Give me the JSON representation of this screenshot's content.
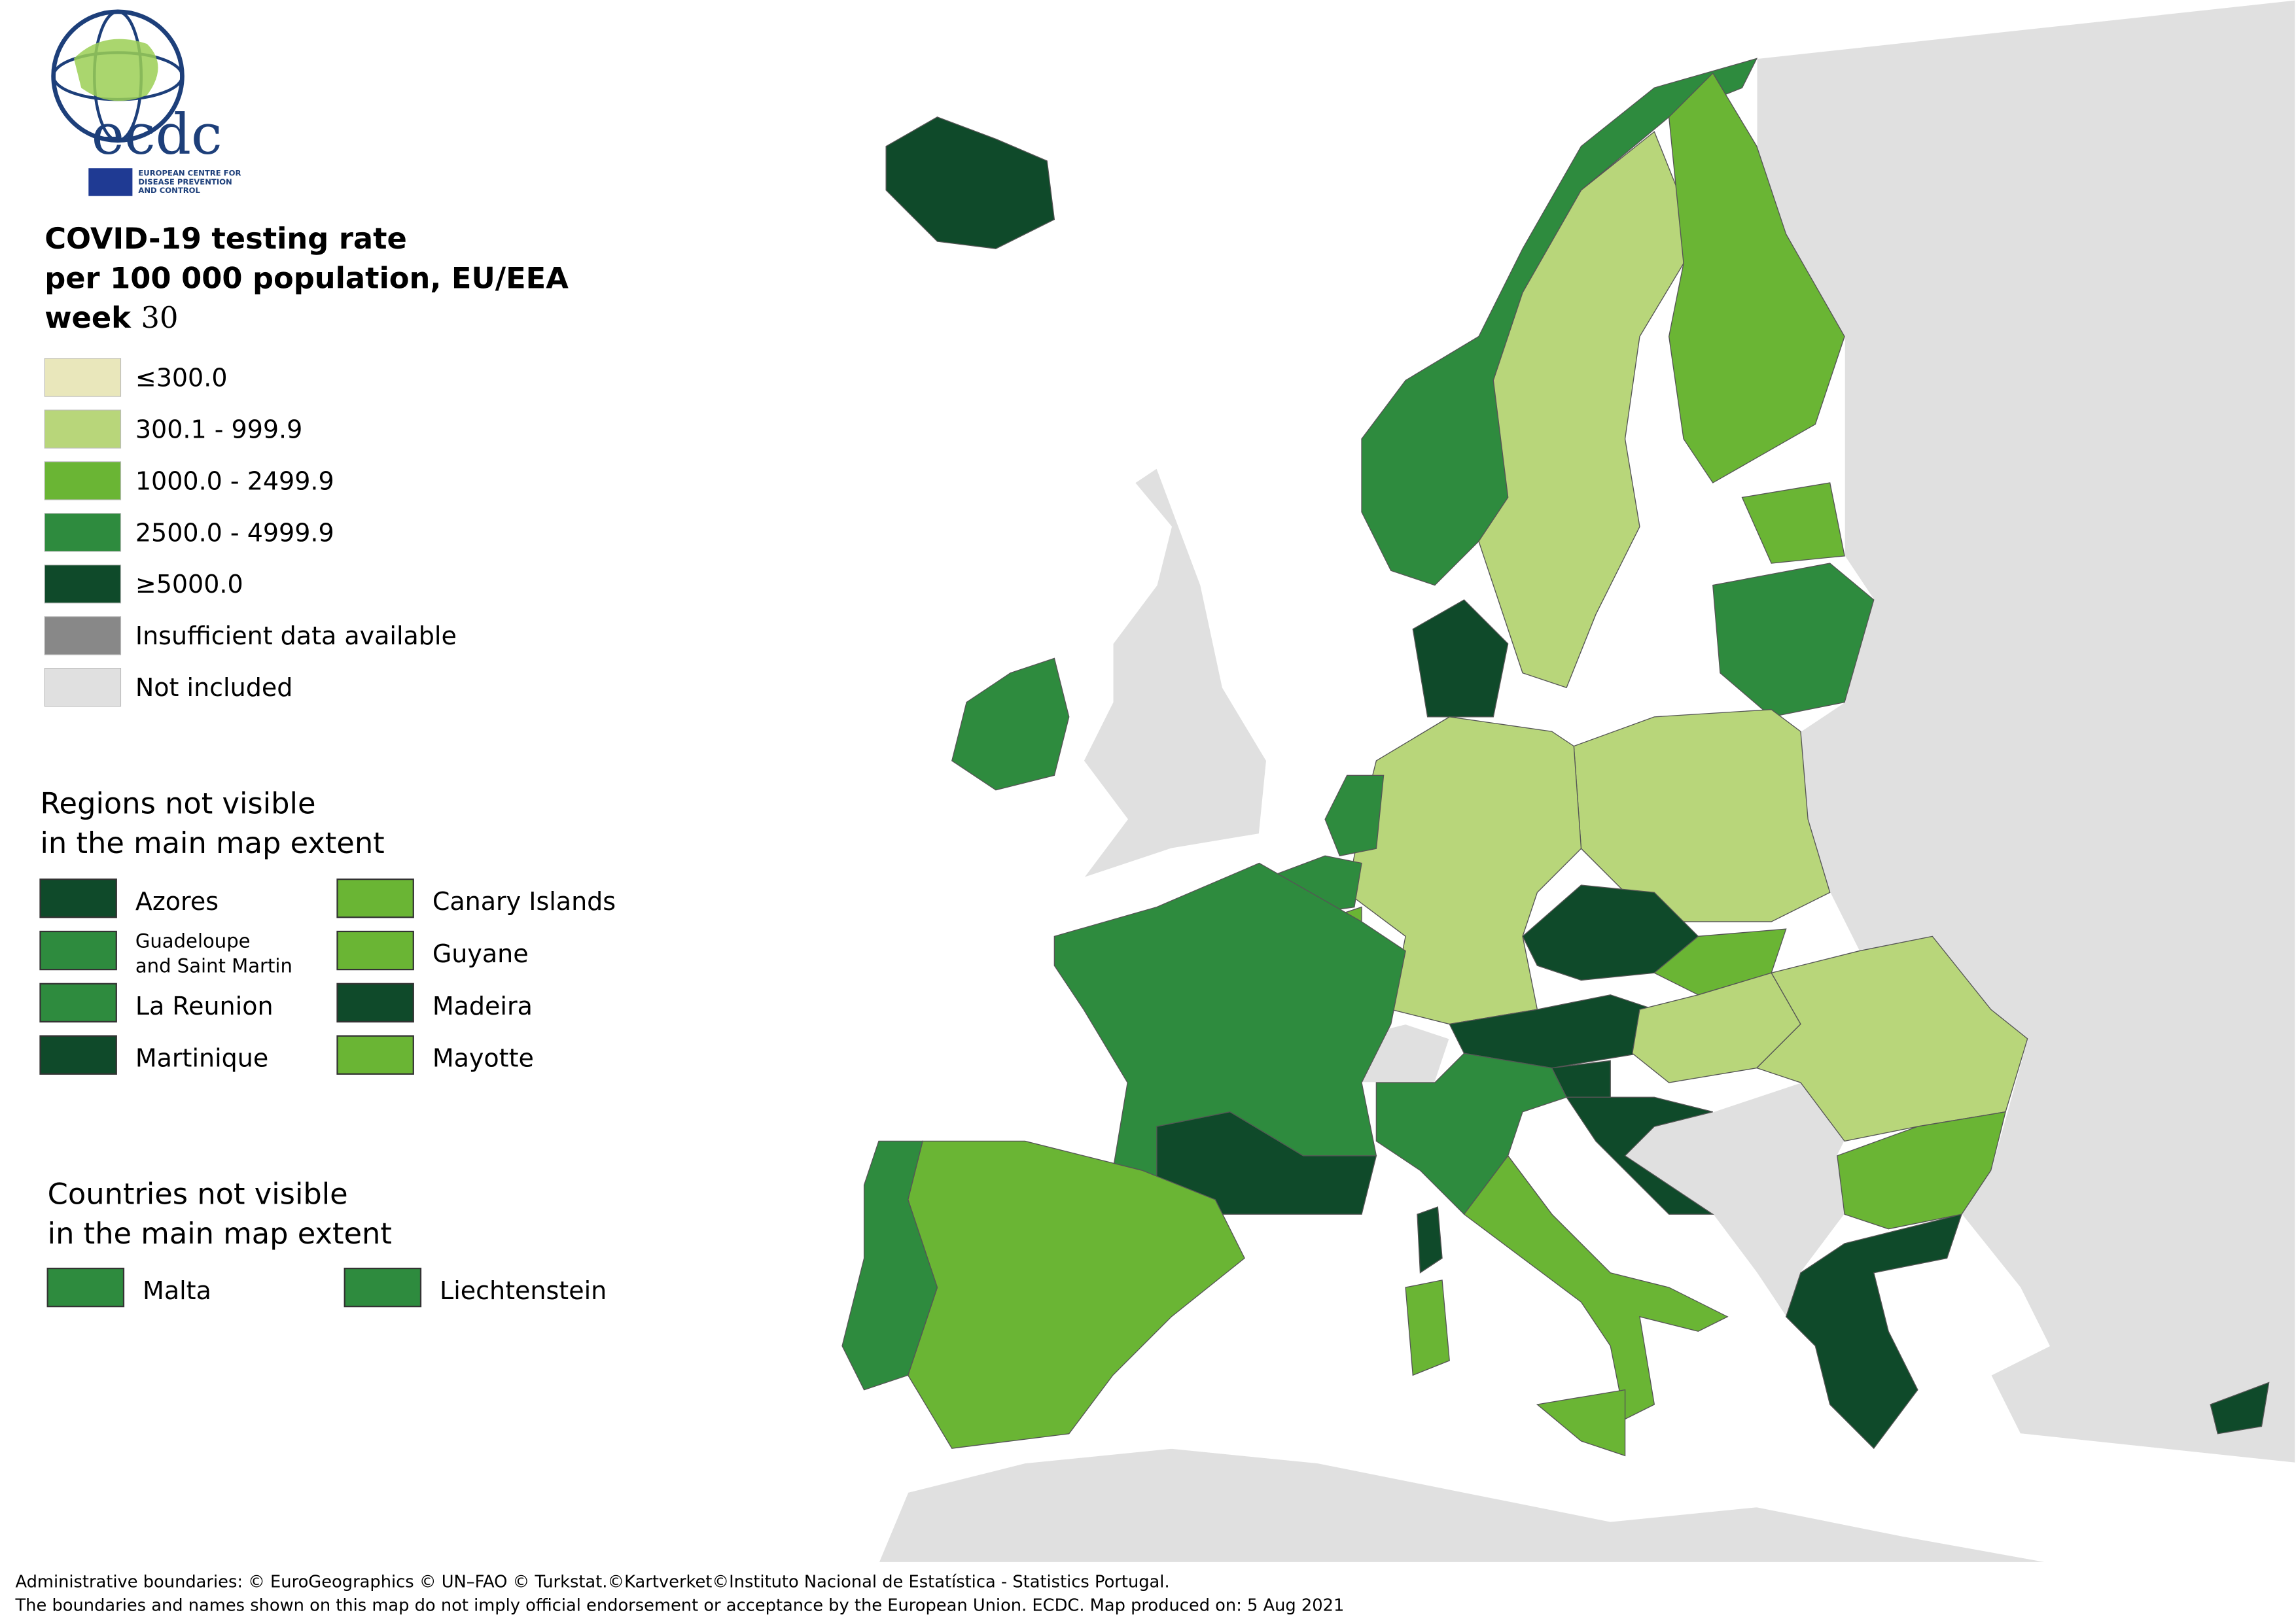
{
  "logo": {
    "acronym": "ecdc",
    "name_lines": [
      "EUROPEAN CENTRE FOR",
      "DISEASE PREVENTION",
      "AND CONTROL"
    ]
  },
  "title": {
    "lines": [
      "COVID-19 testing rate",
      "per 100 000 population, EU/EEA"
    ],
    "week_label": "week",
    "week_number": "30"
  },
  "legend": {
    "items": [
      {
        "label": "≤300.0",
        "color": "#e9e7bb"
      },
      {
        "label": "300.1 - 999.9",
        "color": "#b8d67a"
      },
      {
        "label": "1000.0 - 2499.9",
        "color": "#6ab534"
      },
      {
        "label": "2500.0 - 4999.9",
        "color": "#2e8b3e"
      },
      {
        "label": "≥5000.0",
        "color": "#0f4a2a"
      },
      {
        "label": "Insufficient data available",
        "color": "#888888"
      },
      {
        "label": "Not included",
        "color": "#e0e0e0"
      }
    ]
  },
  "regions": {
    "title_lines": [
      "Regions not visible",
      "in the main map extent"
    ],
    "items": [
      {
        "label": "Azores",
        "color": "#0f4a2a"
      },
      {
        "label": [
          "Guadeloupe",
          "and Saint Martin"
        ],
        "color": "#2e8b3e"
      },
      {
        "label": "La Reunion",
        "color": "#2e8b3e"
      },
      {
        "label": "Martinique",
        "color": "#0f4a2a"
      },
      {
        "label": "Canary Islands",
        "color": "#6ab534"
      },
      {
        "label": "Guyane",
        "color": "#6ab534"
      },
      {
        "label": "Madeira",
        "color": "#0f4a2a"
      },
      {
        "label": "Mayotte",
        "color": "#6ab534"
      }
    ]
  },
  "countries": {
    "title_lines": [
      "Countries not visible",
      "in the main map extent"
    ],
    "items": [
      {
        "label": "Malta",
        "color": "#2e8b3e"
      },
      {
        "label": "Liechtenstein",
        "color": "#2e8b3e"
      }
    ]
  },
  "footer": {
    "lines": [
      "Administrative boundaries: © EuroGeographics © UN–FAO © Turkstat.©Kartverket©Instituto Nacional de Estatística - Statistics Portugal.",
      "The boundaries and names shown on this map do not imply official endorsement or acceptance by the European Union. ECDC. Map produced on: 5 Aug 2021"
    ]
  }
}
